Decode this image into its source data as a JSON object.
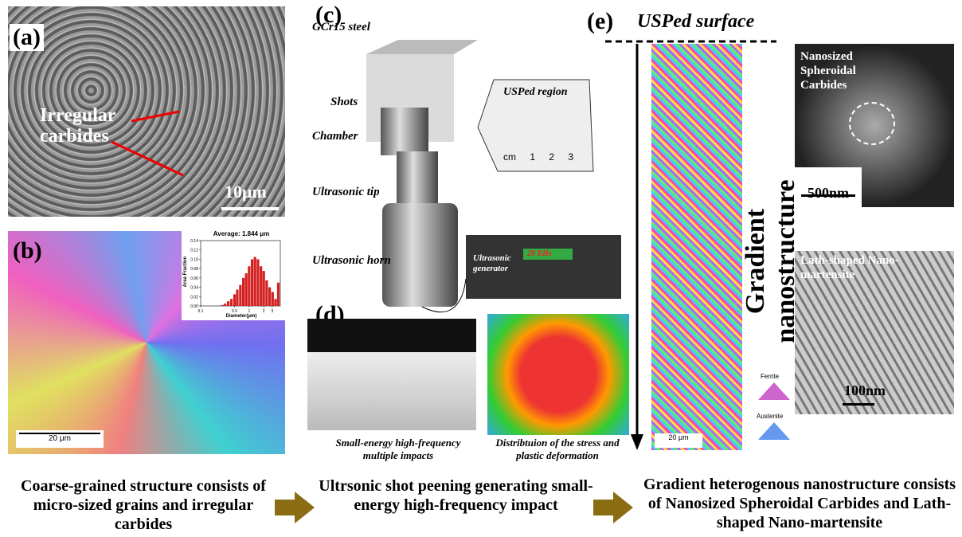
{
  "panels": {
    "a": {
      "label": "(a)",
      "annotation": [
        "Irregular",
        "carbides"
      ],
      "scale": "10μm"
    },
    "b": {
      "label": "(b)",
      "scale": "20 μm",
      "histogram": {
        "type": "bar",
        "title": "Average:  1.844 μm",
        "x_label": "Diameter(μm)",
        "y_label": "Area Fraction",
        "color": "#d42020",
        "x": [
          0.28,
          0.32,
          0.37,
          0.43,
          0.5,
          0.57,
          0.66,
          0.76,
          0.87,
          1.0,
          1.15,
          1.32,
          1.52,
          1.75,
          2.0,
          2.3,
          2.65,
          3.05,
          3.5,
          4.0
        ],
        "values": [
          0.002,
          0.005,
          0.01,
          0.015,
          0.025,
          0.035,
          0.045,
          0.06,
          0.07,
          0.085,
          0.1,
          0.105,
          0.1,
          0.085,
          0.075,
          0.055,
          0.04,
          0.03,
          0.015,
          0.05
        ],
        "xlim": [
          0.1,
          4.4
        ],
        "log_x": true,
        "xticks": [
          0.1,
          0.5,
          1,
          2,
          3
        ],
        "ylim": [
          0,
          0.14
        ],
        "yticks": [
          {
            "value": 0,
            "label": "0.00"
          },
          {
            "value": 0.02,
            "label": "0.02"
          },
          {
            "value": 0.04,
            "label": "0.04"
          },
          {
            "value": 0.06,
            "label": "0.06"
          },
          {
            "value": 0.08,
            "label": "0.08"
          },
          {
            "value": 0.1,
            "label": "0.10"
          },
          {
            "value": 0.12,
            "label": "0.12"
          },
          {
            "value": 0.14,
            "label": "0.14"
          }
        ]
      }
    },
    "c": {
      "label": "(c)",
      "parts": [
        "GCr15 steel",
        "Shots",
        "Chamber",
        "Ultrasonic tip",
        "Ultrasonic horn"
      ],
      "inset": "USPed  region",
      "ruler": [
        "cm",
        "1",
        "2",
        "3"
      ],
      "generator": [
        "Ultrasonic",
        "generator"
      ],
      "frequency": "20 KHz"
    },
    "d": {
      "label": "(d)",
      "captions": [
        "Small-energy high-frequency multiple impacts",
        "Distribtuion of the stress and plastic deformation"
      ]
    },
    "e": {
      "label": "(e)",
      "surface": "USPed surface",
      "axis": "Gradient nanostructure",
      "tem1": [
        "Nanosized",
        "Spheroidal",
        "Carbides"
      ],
      "scale1": "500nm",
      "tem2": [
        "Lath-shaped Nano-",
        "martensite"
      ],
      "scale2": "100nm",
      "ebsd_scale": "20 μm",
      "phases": [
        "Ferrite",
        "Austenite"
      ]
    }
  },
  "captions": [
    "Coarse-grained structure consists of micro-sized grains and irregular carbides",
    "Ultrsonic shot peening generating small-energy high-frequency impact",
    "Gradient heterogenous nanostructure consists of Nanosized Spheroidal Carbides and Lath-shaped Nano-martensite"
  ]
}
